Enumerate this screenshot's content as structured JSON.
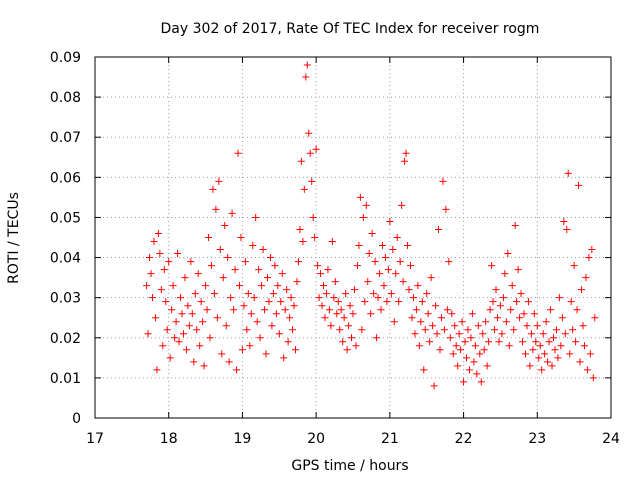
{
  "chart_data": {
    "type": "scatter",
    "title": "Day 302 of 2017, Rate Of TEC Index for receiver rogm",
    "xlabel": "GPS time / hours",
    "ylabel": "ROTI / TECUs",
    "xlim": [
      17,
      24
    ],
    "ylim": [
      0,
      0.09
    ],
    "xticks": [
      17,
      18,
      19,
      20,
      21,
      22,
      23,
      24
    ],
    "yticks": [
      0,
      0.01,
      0.02,
      0.03,
      0.04,
      0.05,
      0.06,
      0.07,
      0.08,
      0.09
    ],
    "xtick_labels": [
      "17",
      "18",
      "19",
      "20",
      "21",
      "22",
      "23",
      "24"
    ],
    "ytick_labels": [
      "0",
      "0.01",
      "0.02",
      "0.03",
      "0.04",
      "0.05",
      "0.06",
      "0.07",
      "0.08",
      "0.09"
    ],
    "grid": true,
    "marker": "+",
    "color": "#ff0000",
    "series": [
      {
        "name": "ROTI",
        "points": [
          [
            17.7,
            0.033
          ],
          [
            17.72,
            0.021
          ],
          [
            17.74,
            0.04
          ],
          [
            17.76,
            0.036
          ],
          [
            17.78,
            0.03
          ],
          [
            17.8,
            0.044
          ],
          [
            17.82,
            0.025
          ],
          [
            17.84,
            0.012
          ],
          [
            17.86,
            0.046
          ],
          [
            17.88,
            0.041
          ],
          [
            17.9,
            0.032
          ],
          [
            17.92,
            0.018
          ],
          [
            17.94,
            0.037
          ],
          [
            17.96,
            0.029
          ],
          [
            17.98,
            0.022
          ],
          [
            18.0,
            0.039
          ],
          [
            18.02,
            0.015
          ],
          [
            18.04,
            0.027
          ],
          [
            18.06,
            0.033
          ],
          [
            18.08,
            0.02
          ],
          [
            18.1,
            0.024
          ],
          [
            18.12,
            0.041
          ],
          [
            18.14,
            0.019
          ],
          [
            18.16,
            0.03
          ],
          [
            18.18,
            0.026
          ],
          [
            18.2,
            0.021
          ],
          [
            18.22,
            0.035
          ],
          [
            18.24,
            0.017
          ],
          [
            18.26,
            0.028
          ],
          [
            18.28,
            0.023
          ],
          [
            18.3,
            0.039
          ],
          [
            18.32,
            0.026
          ],
          [
            18.34,
            0.014
          ],
          [
            18.36,
            0.031
          ],
          [
            18.38,
            0.022
          ],
          [
            18.4,
            0.036
          ],
          [
            18.42,
            0.018
          ],
          [
            18.44,
            0.029
          ],
          [
            18.46,
            0.024
          ],
          [
            18.48,
            0.013
          ],
          [
            18.5,
            0.033
          ],
          [
            18.52,
            0.027
          ],
          [
            18.54,
            0.045
          ],
          [
            18.56,
            0.02
          ],
          [
            18.58,
            0.038
          ],
          [
            18.6,
            0.057
          ],
          [
            18.62,
            0.031
          ],
          [
            18.64,
            0.052
          ],
          [
            18.66,
            0.025
          ],
          [
            18.68,
            0.059
          ],
          [
            18.7,
            0.042
          ],
          [
            18.72,
            0.016
          ],
          [
            18.74,
            0.035
          ],
          [
            18.76,
            0.048
          ],
          [
            18.78,
            0.023
          ],
          [
            18.8,
            0.04
          ],
          [
            18.82,
            0.014
          ],
          [
            18.84,
            0.03
          ],
          [
            18.86,
            0.051
          ],
          [
            18.88,
            0.027
          ],
          [
            18.9,
            0.037
          ],
          [
            18.92,
            0.012
          ],
          [
            18.94,
            0.066
          ],
          [
            18.96,
            0.033
          ],
          [
            18.98,
            0.045
          ],
          [
            19.0,
            0.017
          ],
          [
            19.02,
            0.028
          ],
          [
            19.04,
            0.039
          ],
          [
            19.06,
            0.022
          ],
          [
            19.08,
            0.031
          ],
          [
            19.1,
            0.018
          ],
          [
            19.12,
            0.026
          ],
          [
            19.14,
            0.043
          ],
          [
            19.16,
            0.03
          ],
          [
            19.18,
            0.05
          ],
          [
            19.2,
            0.024
          ],
          [
            19.22,
            0.037
          ],
          [
            19.24,
            0.02
          ],
          [
            19.26,
            0.033
          ],
          [
            19.28,
            0.042
          ],
          [
            19.3,
            0.027
          ],
          [
            19.32,
            0.016
          ],
          [
            19.34,
            0.035
          ],
          [
            19.36,
            0.029
          ],
          [
            19.38,
            0.04
          ],
          [
            19.4,
            0.023
          ],
          [
            19.42,
            0.031
          ],
          [
            19.44,
            0.038
          ],
          [
            19.46,
            0.026
          ],
          [
            19.48,
            0.033
          ],
          [
            19.5,
            0.021
          ],
          [
            19.52,
            0.029
          ],
          [
            19.54,
            0.036
          ],
          [
            19.56,
            0.015
          ],
          [
            19.58,
            0.027
          ],
          [
            19.6,
            0.032
          ],
          [
            19.62,
            0.019
          ],
          [
            19.64,
            0.025
          ],
          [
            19.66,
            0.03
          ],
          [
            19.68,
            0.022
          ],
          [
            19.7,
            0.028
          ],
          [
            19.72,
            0.017
          ],
          [
            19.74,
            0.034
          ],
          [
            19.76,
            0.039
          ],
          [
            19.78,
            0.047
          ],
          [
            19.8,
            0.064
          ],
          [
            19.82,
            0.044
          ],
          [
            19.84,
            0.057
          ],
          [
            19.86,
            0.085
          ],
          [
            19.88,
            0.088
          ],
          [
            19.9,
            0.071
          ],
          [
            19.92,
            0.066
          ],
          [
            19.94,
            0.059
          ],
          [
            19.96,
            0.05
          ],
          [
            19.98,
            0.045
          ],
          [
            20.0,
            0.067
          ],
          [
            20.02,
            0.038
          ],
          [
            20.04,
            0.03
          ],
          [
            20.06,
            0.036
          ],
          [
            20.08,
            0.028
          ],
          [
            20.1,
            0.033
          ],
          [
            20.12,
            0.025
          ],
          [
            20.14,
            0.031
          ],
          [
            20.16,
            0.037
          ],
          [
            20.18,
            0.027
          ],
          [
            20.2,
            0.023
          ],
          [
            20.22,
            0.044
          ],
          [
            20.24,
            0.03
          ],
          [
            20.26,
            0.034
          ],
          [
            20.28,
            0.026
          ],
          [
            20.3,
            0.029
          ],
          [
            20.32,
            0.022
          ],
          [
            20.34,
            0.027
          ],
          [
            20.36,
            0.019
          ],
          [
            20.38,
            0.025
          ],
          [
            20.4,
            0.031
          ],
          [
            20.42,
            0.017
          ],
          [
            20.44,
            0.023
          ],
          [
            20.46,
            0.028
          ],
          [
            20.48,
            0.02
          ],
          [
            20.5,
            0.026
          ],
          [
            20.52,
            0.032
          ],
          [
            20.54,
            0.018
          ],
          [
            20.56,
            0.038
          ],
          [
            20.58,
            0.043
          ],
          [
            20.6,
            0.055
          ],
          [
            20.62,
            0.022
          ],
          [
            20.64,
            0.05
          ],
          [
            20.66,
            0.029
          ],
          [
            20.68,
            0.053
          ],
          [
            20.7,
            0.034
          ],
          [
            20.72,
            0.041
          ],
          [
            20.74,
            0.026
          ],
          [
            20.76,
            0.046
          ],
          [
            20.78,
            0.031
          ],
          [
            20.8,
            0.039
          ],
          [
            20.82,
            0.02
          ],
          [
            20.84,
            0.03
          ],
          [
            20.86,
            0.036
          ],
          [
            20.88,
            0.027
          ],
          [
            20.9,
            0.043
          ],
          [
            20.92,
            0.033
          ],
          [
            20.94,
            0.04
          ],
          [
            20.96,
            0.029
          ],
          [
            20.98,
            0.037
          ],
          [
            21.0,
            0.049
          ],
          [
            21.02,
            0.031
          ],
          [
            21.04,
            0.042
          ],
          [
            21.06,
            0.024
          ],
          [
            21.08,
            0.036
          ],
          [
            21.1,
            0.045
          ],
          [
            21.12,
            0.029
          ],
          [
            21.14,
            0.039
          ],
          [
            21.16,
            0.053
          ],
          [
            21.18,
            0.034
          ],
          [
            21.2,
            0.064
          ],
          [
            21.22,
            0.066
          ],
          [
            21.24,
            0.043
          ],
          [
            21.26,
            0.032
          ],
          [
            21.28,
            0.038
          ],
          [
            21.3,
            0.025
          ],
          [
            21.32,
            0.03
          ],
          [
            21.34,
            0.021
          ],
          [
            21.36,
            0.027
          ],
          [
            21.38,
            0.033
          ],
          [
            21.4,
            0.018
          ],
          [
            21.42,
            0.024
          ],
          [
            21.44,
            0.029
          ],
          [
            21.46,
            0.012
          ],
          [
            21.48,
            0.022
          ],
          [
            21.5,
            0.031
          ],
          [
            21.52,
            0.026
          ],
          [
            21.54,
            0.019
          ],
          [
            21.56,
            0.035
          ],
          [
            21.58,
            0.023
          ],
          [
            21.6,
            0.008
          ],
          [
            21.62,
            0.028
          ],
          [
            21.64,
            0.021
          ],
          [
            21.66,
            0.047
          ],
          [
            21.68,
            0.017
          ],
          [
            21.7,
            0.025
          ],
          [
            21.72,
            0.059
          ],
          [
            21.74,
            0.022
          ],
          [
            21.76,
            0.052
          ],
          [
            21.78,
            0.027
          ],
          [
            21.8,
            0.039
          ],
          [
            21.82,
            0.02
          ],
          [
            21.84,
            0.026
          ],
          [
            21.86,
            0.016
          ],
          [
            21.88,
            0.023
          ],
          [
            21.9,
            0.018
          ],
          [
            21.92,
            0.013
          ],
          [
            21.94,
            0.021
          ],
          [
            21.96,
            0.017
          ],
          [
            21.98,
            0.024
          ],
          [
            22.0,
            0.009
          ],
          [
            22.02,
            0.019
          ],
          [
            22.04,
            0.015
          ],
          [
            22.06,
            0.022
          ],
          [
            22.08,
            0.012
          ],
          [
            22.1,
            0.02
          ],
          [
            22.12,
            0.026
          ],
          [
            22.14,
            0.014
          ],
          [
            22.16,
            0.018
          ],
          [
            22.18,
            0.011
          ],
          [
            22.2,
            0.023
          ],
          [
            22.22,
            0.016
          ],
          [
            22.24,
            0.009
          ],
          [
            22.26,
            0.021
          ],
          [
            22.28,
            0.017
          ],
          [
            22.3,
            0.024
          ],
          [
            22.32,
            0.013
          ],
          [
            22.34,
            0.019
          ],
          [
            22.36,
            0.027
          ],
          [
            22.38,
            0.038
          ],
          [
            22.4,
            0.029
          ],
          [
            22.42,
            0.022
          ],
          [
            22.44,
            0.032
          ],
          [
            22.46,
            0.025
          ],
          [
            22.48,
            0.019
          ],
          [
            22.5,
            0.028
          ],
          [
            22.52,
            0.021
          ],
          [
            22.54,
            0.03
          ],
          [
            22.56,
            0.036
          ],
          [
            22.58,
            0.024
          ],
          [
            22.6,
            0.041
          ],
          [
            22.62,
            0.018
          ],
          [
            22.64,
            0.027
          ],
          [
            22.66,
            0.033
          ],
          [
            22.68,
            0.022
          ],
          [
            22.7,
            0.048
          ],
          [
            22.72,
            0.029
          ],
          [
            22.74,
            0.037
          ],
          [
            22.76,
            0.025
          ],
          [
            22.78,
            0.031
          ],
          [
            22.8,
            0.019
          ],
          [
            22.82,
            0.026
          ],
          [
            22.84,
            0.016
          ],
          [
            22.86,
            0.023
          ],
          [
            22.88,
            0.029
          ],
          [
            22.9,
            0.013
          ],
          [
            22.92,
            0.021
          ],
          [
            22.94,
            0.017
          ],
          [
            22.96,
            0.026
          ],
          [
            22.98,
            0.019
          ],
          [
            23.0,
            0.023
          ],
          [
            23.02,
            0.015
          ],
          [
            23.04,
            0.018
          ],
          [
            23.06,
            0.012
          ],
          [
            23.08,
            0.021
          ],
          [
            23.1,
            0.016
          ],
          [
            23.12,
            0.024
          ],
          [
            23.14,
            0.014
          ],
          [
            23.16,
            0.019
          ],
          [
            23.18,
            0.027
          ],
          [
            23.2,
            0.013
          ],
          [
            23.22,
            0.02
          ],
          [
            23.24,
            0.017
          ],
          [
            23.26,
            0.022
          ],
          [
            23.28,
            0.015
          ],
          [
            23.3,
            0.03
          ],
          [
            23.32,
            0.018
          ],
          [
            23.34,
            0.025
          ],
          [
            23.36,
            0.049
          ],
          [
            23.38,
            0.021
          ],
          [
            23.4,
            0.047
          ],
          [
            23.42,
            0.061
          ],
          [
            23.44,
            0.016
          ],
          [
            23.46,
            0.029
          ],
          [
            23.48,
            0.022
          ],
          [
            23.5,
            0.038
          ],
          [
            23.52,
            0.019
          ],
          [
            23.54,
            0.027
          ],
          [
            23.56,
            0.058
          ],
          [
            23.58,
            0.014
          ],
          [
            23.6,
            0.032
          ],
          [
            23.62,
            0.023
          ],
          [
            23.64,
            0.018
          ],
          [
            23.66,
            0.035
          ],
          [
            23.68,
            0.012
          ],
          [
            23.7,
            0.04
          ],
          [
            23.72,
            0.016
          ],
          [
            23.74,
            0.042
          ],
          [
            23.76,
            0.01
          ],
          [
            23.78,
            0.025
          ]
        ]
      }
    ]
  }
}
